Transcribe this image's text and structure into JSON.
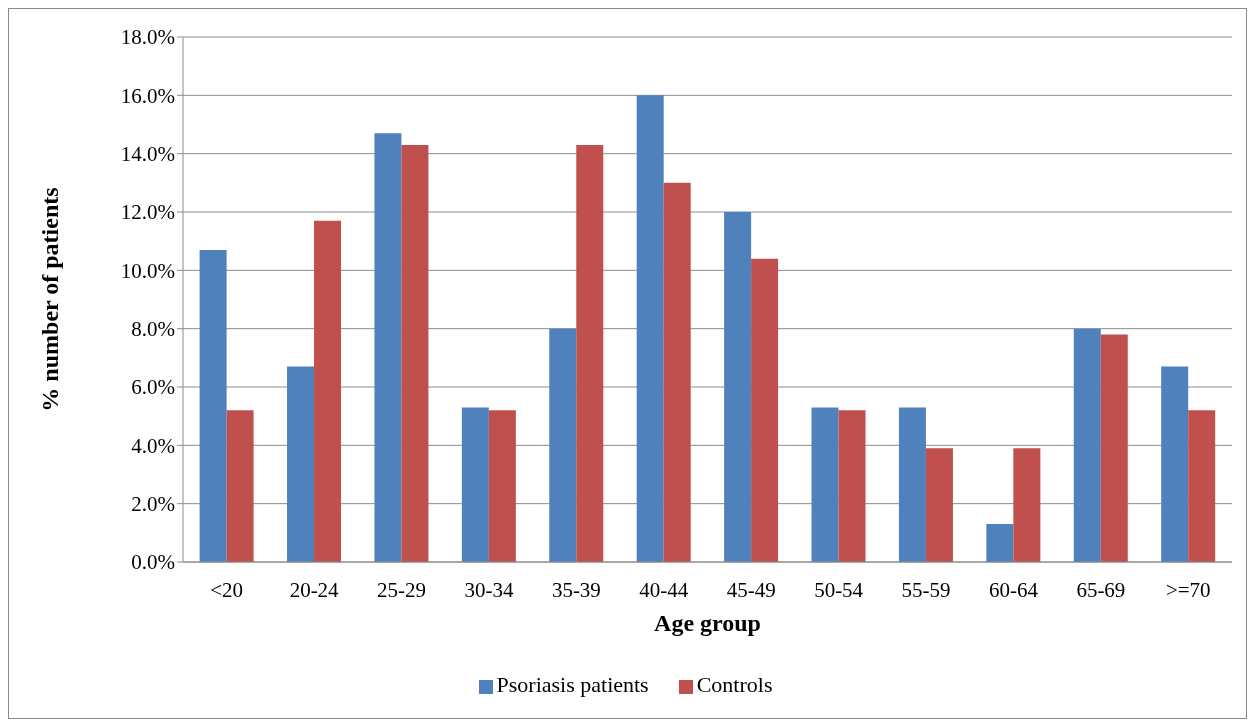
{
  "chart_data": {
    "type": "bar",
    "xlabel": "Age group",
    "ylabel": "% number of patients",
    "categories": [
      "<20",
      "20-24",
      "25-29",
      "30-34",
      "35-39",
      "40-44",
      "45-49",
      "50-54",
      "55-59",
      "60-64",
      "65-69",
      ">=70"
    ],
    "series": [
      {
        "name": "Psoriasis patients",
        "color": "#4f81bd",
        "values": [
          10.7,
          6.7,
          14.7,
          5.3,
          8.0,
          16.0,
          12.0,
          5.3,
          5.3,
          1.3,
          8.0,
          6.7
        ]
      },
      {
        "name": "Controls",
        "color": "#c0504d",
        "values": [
          5.2,
          11.7,
          14.3,
          5.2,
          14.3,
          13.0,
          10.4,
          5.2,
          3.9,
          3.9,
          7.8,
          5.2
        ]
      }
    ],
    "ylim": [
      0,
      18
    ],
    "yticks": [
      {
        "value": 0,
        "label": "0.0%"
      },
      {
        "value": 2,
        "label": "2.0%"
      },
      {
        "value": 4,
        "label": "4.0%"
      },
      {
        "value": 6,
        "label": "6.0%"
      },
      {
        "value": 8,
        "label": "8.0%"
      },
      {
        "value": 10,
        "label": "10.0%"
      },
      {
        "value": 12,
        "label": "12.0%"
      },
      {
        "value": 14,
        "label": "14.0%"
      },
      {
        "value": 16,
        "label": "16.0%"
      },
      {
        "value": 18,
        "label": "18.0%"
      }
    ],
    "grid": "y",
    "legend": "bottom"
  }
}
